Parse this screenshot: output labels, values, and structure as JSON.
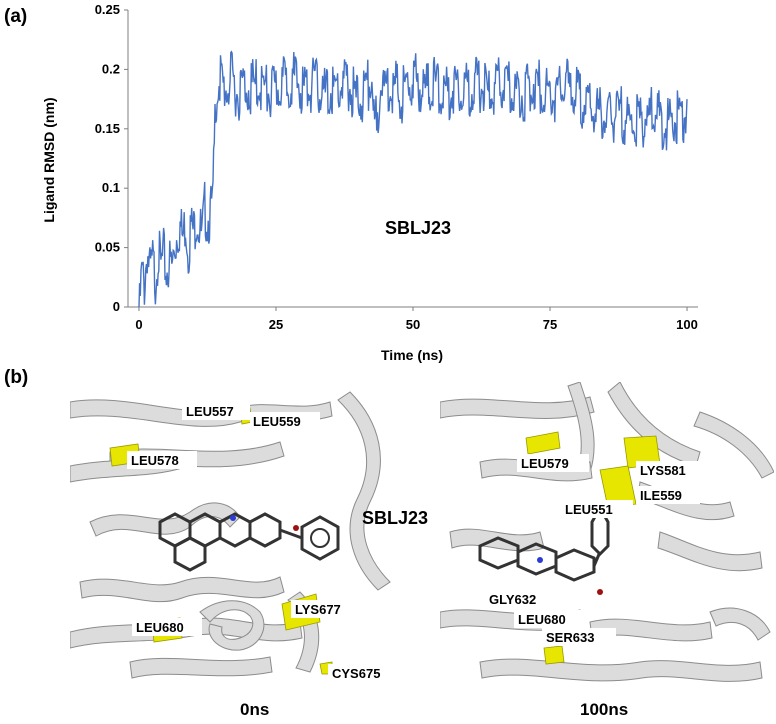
{
  "panel_a_label": "(a)",
  "panel_b_label": "(b)",
  "chart_data": {
    "type": "line",
    "ylabel": "Ligand RMSD (nm)",
    "xlabel": "Time (ns)",
    "annotation": "SBLJ23",
    "xlim": [
      -2,
      102
    ],
    "ylim": [
      0,
      0.25
    ],
    "xticks": [
      0,
      25,
      50,
      75,
      100
    ],
    "yticks": [
      0,
      0.05,
      0.1,
      0.15,
      0.2,
      0.25
    ],
    "series_color": "#4472C4",
    "series": [
      {
        "x": [
          0,
          0.5,
          1,
          1.5,
          2,
          2.5,
          3,
          3.5,
          4,
          4.5,
          5,
          5.5,
          6,
          6.5,
          7,
          7.5,
          8,
          8.5,
          9,
          9.5,
          10,
          10.5,
          11,
          11.5,
          12,
          12.5,
          13,
          13.5,
          14,
          14.5,
          15,
          16,
          17,
          18,
          19,
          20,
          22,
          24,
          26,
          28,
          30,
          32,
          34,
          36,
          38,
          40,
          42,
          43,
          44,
          46,
          48,
          50,
          52,
          54,
          56,
          58,
          60,
          62,
          64,
          66,
          68,
          70,
          72,
          74,
          76,
          78,
          80,
          82,
          84,
          86,
          88,
          90,
          92,
          94,
          96,
          98,
          100
        ],
        "y": [
          0.0,
          0.04,
          0.03,
          0.06,
          0.04,
          0.05,
          0.035,
          0.06,
          0.045,
          0.055,
          0.04,
          0.05,
          0.045,
          0.06,
          0.075,
          0.08,
          0.07,
          0.085,
          0.06,
          0.08,
          0.075,
          0.09,
          0.08,
          0.07,
          0.095,
          0.085,
          0.09,
          0.1,
          0.19,
          0.2,
          0.2,
          0.195,
          0.205,
          0.19,
          0.2,
          0.195,
          0.2,
          0.19,
          0.2,
          0.205,
          0.195,
          0.2,
          0.19,
          0.195,
          0.2,
          0.185,
          0.2,
          0.16,
          0.195,
          0.2,
          0.19,
          0.205,
          0.195,
          0.2,
          0.19,
          0.2,
          0.195,
          0.2,
          0.19,
          0.2,
          0.195,
          0.19,
          0.2,
          0.195,
          0.19,
          0.2,
          0.19,
          0.18,
          0.175,
          0.17,
          0.175,
          0.165,
          0.17,
          0.175,
          0.165,
          0.17,
          0.175
        ]
      }
    ]
  },
  "panel_b": {
    "left": {
      "caption": "0ns",
      "ligand_label": "SBLJ23",
      "residues": [
        "LEU557",
        "LEU559",
        "LEU578",
        "LEU680",
        "LYS677",
        "CYS675"
      ]
    },
    "right": {
      "caption": "100ns",
      "residues": [
        "LEU579",
        "LYS581",
        "ILE559",
        "LEU551",
        "GLY632",
        "LEU680",
        "SER633"
      ]
    }
  },
  "colors": {
    "ribbon": "#d9d9d9",
    "ribbon_edge": "#8c8c8c",
    "highlight": "#e6e600",
    "ligand": "#333333"
  }
}
